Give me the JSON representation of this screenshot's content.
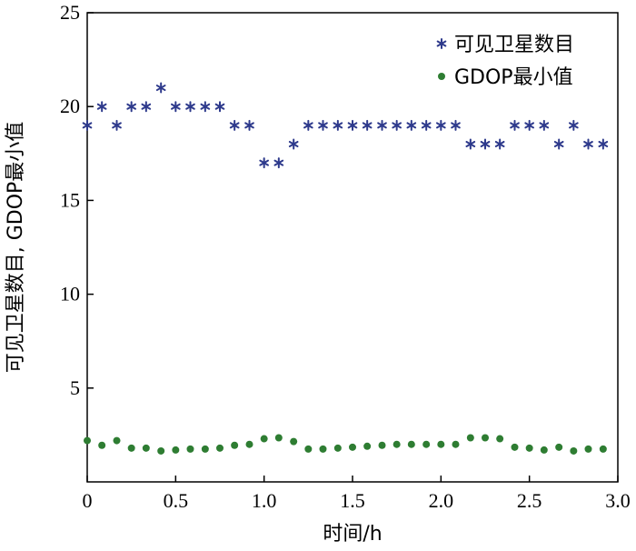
{
  "chart_data": {
    "type": "scatter",
    "xlabel": "时间/h",
    "ylabel": "可见卫星数目, GDOP最小值",
    "xlim": [
      0,
      3.0
    ],
    "ylim": [
      0,
      25
    ],
    "xticks": [
      0,
      0.5,
      1.0,
      1.5,
      2.0,
      2.5,
      3.0
    ],
    "xtick_labels": [
      "0",
      "0.5",
      "1.0",
      "1.5",
      "2.0",
      "2.5",
      "3.0"
    ],
    "yticks": [
      5,
      10,
      15,
      20,
      25
    ],
    "ytick_labels": [
      "5",
      "10",
      "15",
      "20",
      "25"
    ],
    "grid": false,
    "legend_position": "top-right",
    "series": [
      {
        "name": "可见卫星数目",
        "marker": "star",
        "color": "#2e3a8c",
        "x": [
          0.0,
          0.083,
          0.167,
          0.25,
          0.333,
          0.417,
          0.5,
          0.583,
          0.667,
          0.75,
          0.833,
          0.917,
          1.0,
          1.083,
          1.167,
          1.25,
          1.333,
          1.417,
          1.5,
          1.583,
          1.667,
          1.75,
          1.833,
          1.917,
          2.0,
          2.083,
          2.167,
          2.25,
          2.333,
          2.417,
          2.5,
          2.583,
          2.667,
          2.75,
          2.833,
          2.917
        ],
        "y": [
          19,
          20,
          19,
          20,
          20,
          21,
          20,
          20,
          20,
          20,
          19,
          19,
          17,
          17,
          18,
          19,
          19,
          19,
          19,
          19,
          19,
          19,
          19,
          19,
          19,
          19,
          18,
          18,
          18,
          19,
          19,
          19,
          18,
          19,
          18,
          18
        ]
      },
      {
        "name": "GDOP最小值",
        "marker": "circle",
        "color": "#2e7d32",
        "x": [
          0.0,
          0.083,
          0.167,
          0.25,
          0.333,
          0.417,
          0.5,
          0.583,
          0.667,
          0.75,
          0.833,
          0.917,
          1.0,
          1.083,
          1.167,
          1.25,
          1.333,
          1.417,
          1.5,
          1.583,
          1.667,
          1.75,
          1.833,
          1.917,
          2.0,
          2.083,
          2.167,
          2.25,
          2.333,
          2.417,
          2.5,
          2.583,
          2.667,
          2.75,
          2.833,
          2.917
        ],
        "y": [
          2.2,
          1.95,
          2.2,
          1.8,
          1.8,
          1.65,
          1.7,
          1.75,
          1.75,
          1.8,
          1.95,
          2.0,
          2.3,
          2.35,
          2.15,
          1.75,
          1.75,
          1.8,
          1.85,
          1.9,
          1.95,
          2.0,
          2.0,
          2.0,
          2.0,
          2.0,
          2.35,
          2.35,
          2.3,
          1.85,
          1.8,
          1.7,
          1.85,
          1.65,
          1.75,
          1.75
        ]
      }
    ]
  }
}
